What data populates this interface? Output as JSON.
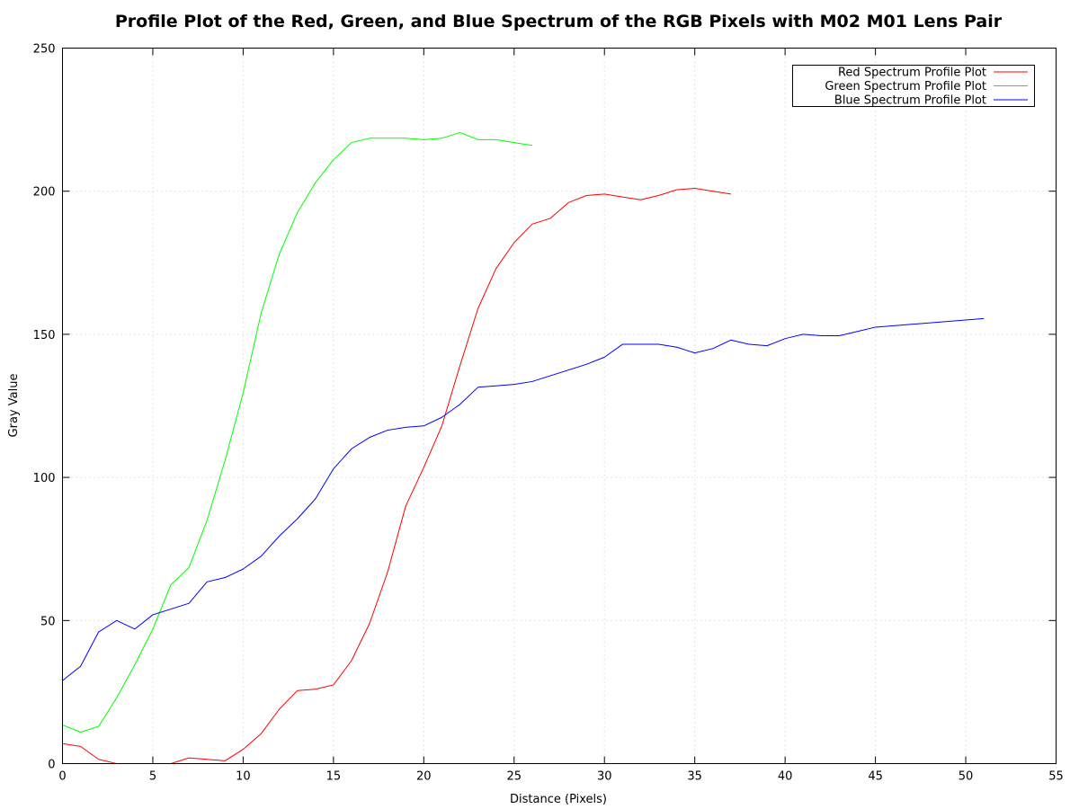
{
  "chart_data": {
    "type": "line",
    "title": "Profile Plot of the Red, Green, and Blue Spectrum of the RGB Pixels with M02 M01 Lens Pair",
    "xlabel": "Distance (Pixels)",
    "ylabel": "Gray Value",
    "xlim": [
      0,
      55
    ],
    "ylim": [
      0,
      250
    ],
    "xticks": [
      0,
      5,
      10,
      15,
      20,
      25,
      30,
      35,
      40,
      45,
      50,
      55
    ],
    "yticks": [
      0,
      50,
      100,
      150,
      200,
      250
    ],
    "grid": true,
    "legend_position": "top-right",
    "series": [
      {
        "name": "Red Spectrum Profile Plot",
        "color": "#ff0000",
        "x": [
          0,
          1,
          2,
          3,
          4,
          5,
          6,
          7,
          8,
          9,
          10,
          11,
          12,
          13,
          14,
          15,
          16,
          17,
          18,
          19,
          20,
          21,
          22,
          23,
          24,
          25,
          26,
          27,
          28,
          29,
          30,
          31,
          32,
          33,
          34,
          35,
          36,
          37
        ],
        "y": [
          7,
          6,
          1.5,
          0,
          -1,
          -1.5,
          0,
          2,
          1.5,
          1,
          5,
          10.5,
          19,
          25.5,
          26,
          27.5,
          36,
          49,
          67,
          90,
          103.5,
          118,
          139,
          159,
          173,
          182,
          188.5,
          190.5,
          196,
          198.5,
          199,
          198,
          197,
          198.5,
          200.5,
          201,
          200,
          199
        ]
      },
      {
        "name": "Green Spectrum Profile Plot",
        "color": "#00ff00",
        "x": [
          0,
          1,
          2,
          3,
          4,
          5,
          6,
          7,
          8,
          9,
          10,
          11,
          12,
          13,
          14,
          15,
          16,
          17,
          18,
          19,
          20,
          21,
          22,
          23,
          24,
          25,
          26
        ],
        "y": [
          13.5,
          11,
          13,
          23,
          34.5,
          47,
          62.5,
          68.5,
          85,
          106,
          129.5,
          157.5,
          178,
          192.5,
          203,
          211,
          217,
          218.5,
          218.5,
          218.5,
          218,
          218.5,
          220.5,
          218,
          218,
          217,
          216
        ]
      },
      {
        "name": "Blue Spectrum Profile Plot",
        "color": "#0000ff",
        "x": [
          0,
          1,
          2,
          3,
          4,
          5,
          6,
          7,
          8,
          9,
          10,
          11,
          12,
          13,
          14,
          15,
          16,
          17,
          18,
          19,
          20,
          21,
          22,
          23,
          24,
          25,
          26,
          27,
          28,
          29,
          30,
          31,
          32,
          33,
          34,
          35,
          36,
          37,
          38,
          39,
          40,
          41,
          42,
          43,
          44,
          45,
          51
        ],
        "y": [
          29,
          34,
          46,
          50,
          47,
          52,
          54,
          56,
          63.5,
          65,
          68,
          72.5,
          79.5,
          85.5,
          92.5,
          103,
          110,
          114,
          116.5,
          117.5,
          118,
          121,
          125.5,
          131.5,
          132,
          132.5,
          133.5,
          135.5,
          137.5,
          139.5,
          142,
          146.5,
          146.5,
          146.5,
          145.5,
          143.5,
          145,
          148,
          146.5,
          146,
          148.5,
          150,
          149.5,
          149.5,
          151,
          152.5,
          155.5
        ]
      }
    ]
  }
}
